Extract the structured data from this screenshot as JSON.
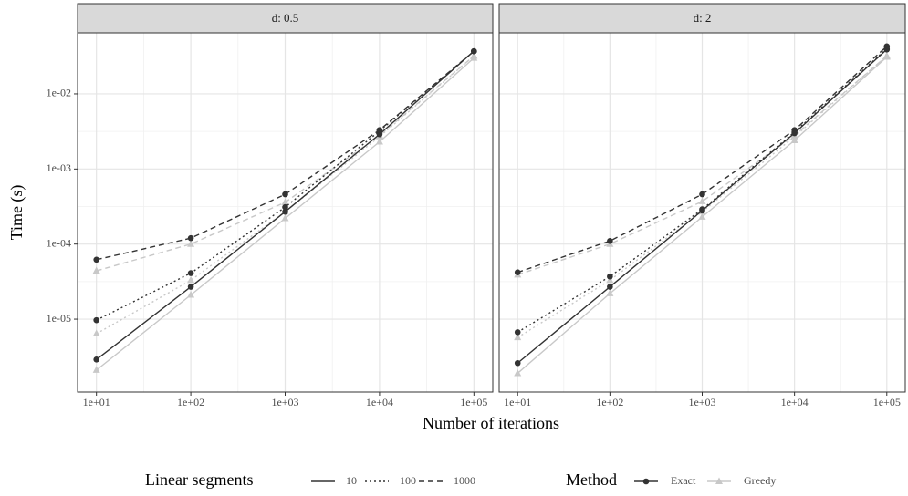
{
  "chart_data": {
    "type": "line",
    "x_label": "Number of iterations",
    "y_label": "Time (s)",
    "x_log": true,
    "y_log": true,
    "grid": true,
    "x": [
      10,
      100,
      1000,
      10000,
      100000
    ],
    "xlim": [
      6.31,
      158489
    ],
    "ylim": [
      1.07e-06,
      0.065
    ],
    "xticks": [
      {
        "value": 10,
        "label": "1e+01"
      },
      {
        "value": 100,
        "label": "1e+02"
      },
      {
        "value": 1000,
        "label": "1e+03"
      },
      {
        "value": 10000,
        "label": "1e+04"
      },
      {
        "value": 100000,
        "label": "1e+05"
      }
    ],
    "yticks": [
      {
        "value": 1e-05,
        "label": "1e-05"
      },
      {
        "value": 0.0001,
        "label": "1e-04"
      },
      {
        "value": 0.001,
        "label": "1e-03"
      },
      {
        "value": 0.01,
        "label": "1e-02"
      }
    ],
    "legend": {
      "position": "bottom",
      "linetype": {
        "title": "Linear segments",
        "labels": [
          "10",
          "100",
          "1000"
        ],
        "styles": [
          "solid",
          "dotted",
          "dashed"
        ]
      },
      "method": {
        "title": "Method",
        "labels": [
          "Exact",
          "Greedy"
        ],
        "colors": [
          "#333333",
          "#c8c8c8"
        ],
        "markers": [
          "circle",
          "triangle"
        ]
      }
    },
    "facets": [
      {
        "title": "d: 0.5",
        "series": [
          {
            "method": "Greedy",
            "segments": "10",
            "values": [
              2.1e-06,
              2.1e-05,
              0.00022,
              0.0023,
              0.03
            ]
          },
          {
            "method": "Greedy",
            "segments": "100",
            "values": [
              6.4e-06,
              3.3e-05,
              0.00027,
              0.0027,
              0.032
            ]
          },
          {
            "method": "Greedy",
            "segments": "1000",
            "values": [
              4.4e-05,
              0.0001,
              0.00036,
              0.0028,
              0.032
            ]
          },
          {
            "method": "Exact",
            "segments": "10",
            "values": [
              2.9e-06,
              2.7e-05,
              0.00027,
              0.0029,
              0.037
            ]
          },
          {
            "method": "Exact",
            "segments": "100",
            "values": [
              9.7e-06,
              4.1e-05,
              0.00031,
              0.0032,
              0.037
            ]
          },
          {
            "method": "Exact",
            "segments": "1000",
            "values": [
              6.2e-05,
              0.00012,
              0.00046,
              0.0033,
              0.037
            ]
          }
        ]
      },
      {
        "title": "d: 2",
        "series": [
          {
            "method": "Greedy",
            "segments": "10",
            "values": [
              1.9e-06,
              2.2e-05,
              0.00023,
              0.0024,
              0.031
            ]
          },
          {
            "method": "Greedy",
            "segments": "100",
            "values": [
              5.7e-06,
              3.3e-05,
              0.00027,
              0.0027,
              0.032
            ]
          },
          {
            "method": "Greedy",
            "segments": "1000",
            "values": [
              3.9e-05,
              0.0001,
              0.00037,
              0.0028,
              0.032
            ]
          },
          {
            "method": "Exact",
            "segments": "10",
            "values": [
              2.6e-06,
              2.7e-05,
              0.00028,
              0.003,
              0.039
            ]
          },
          {
            "method": "Exact",
            "segments": "100",
            "values": [
              6.7e-06,
              3.7e-05,
              0.00029,
              0.0031,
              0.04
            ]
          },
          {
            "method": "Exact",
            "segments": "1000",
            "values": [
              4.2e-05,
              0.00011,
              0.00046,
              0.0033,
              0.043
            ]
          }
        ]
      }
    ]
  }
}
